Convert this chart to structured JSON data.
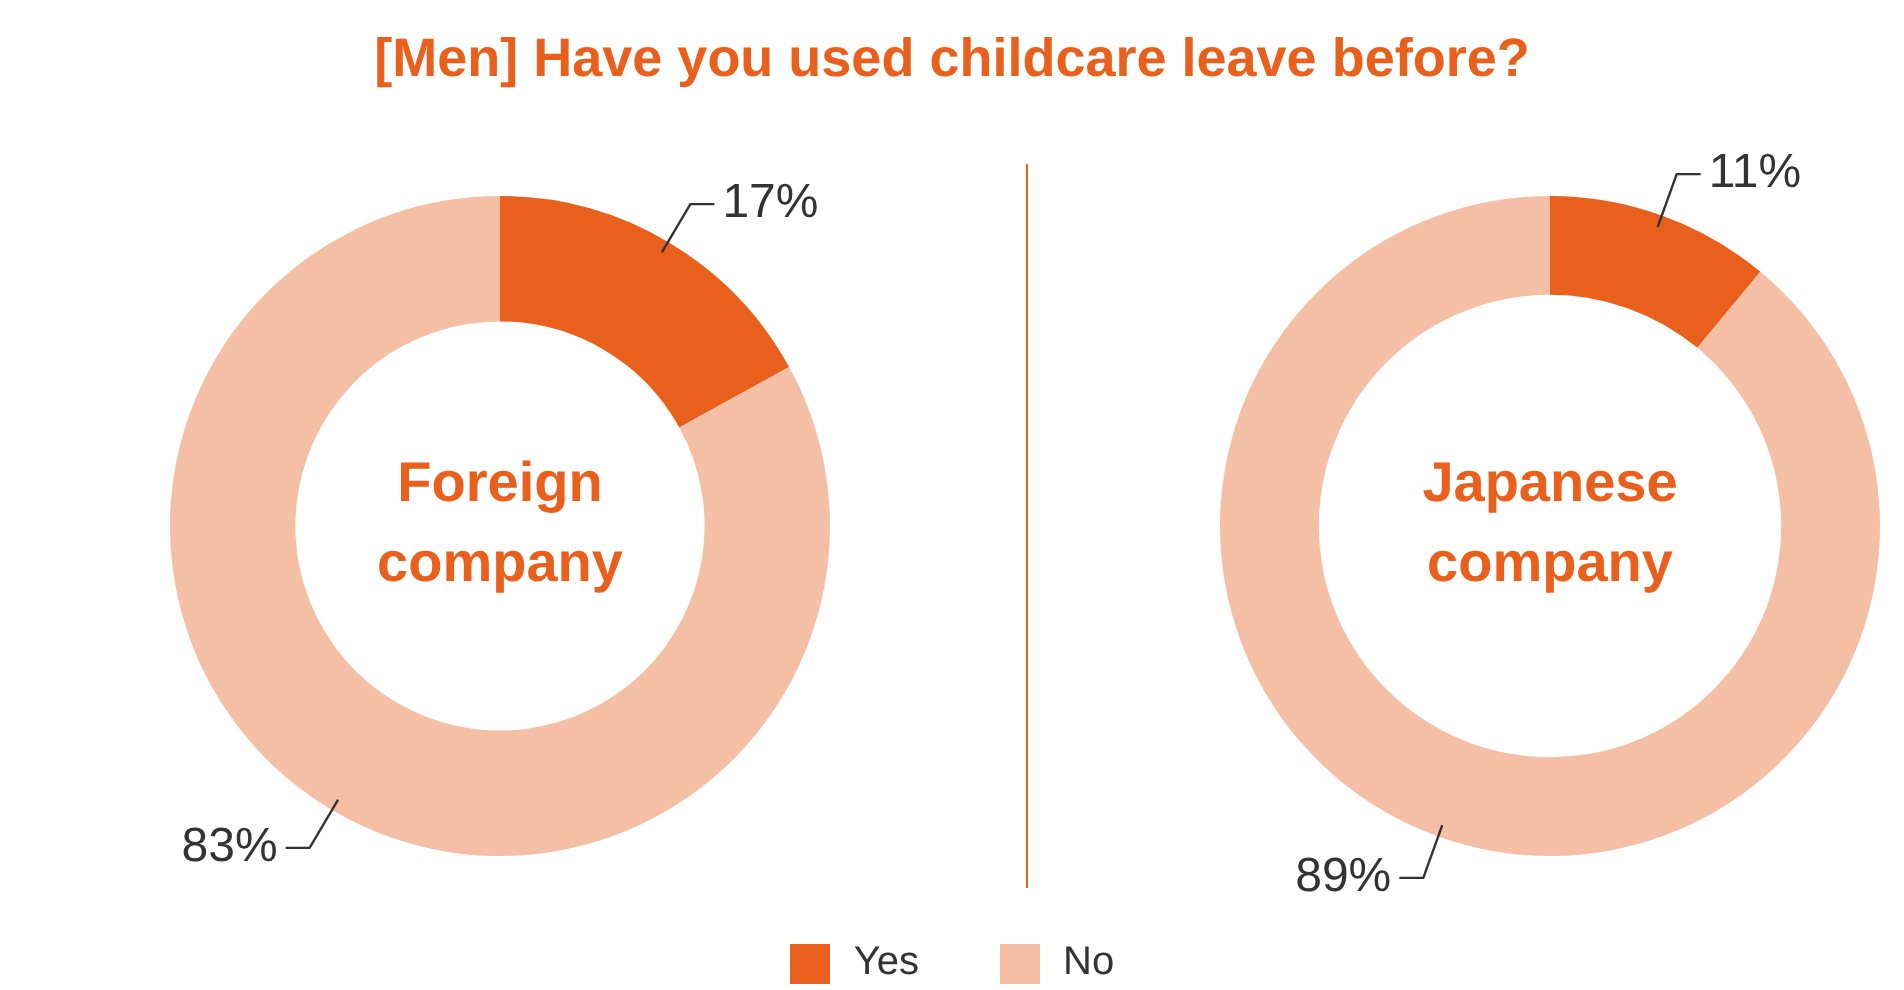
{
  "chart_data": [
    {
      "type": "donut",
      "title": "[Men] Have you used childcare leave before?",
      "categories": [
        "Yes",
        "No"
      ],
      "values": [
        17,
        83
      ],
      "value_labels": [
        "17%",
        "83%"
      ],
      "colors": [
        "#e8601c",
        "#f5bfa5"
      ],
      "annotations": [
        "Foreign company"
      ],
      "legend": "bottom"
    },
    {
      "type": "donut",
      "categories": [
        null,
        null
      ],
      "values": [
        11,
        89
      ],
      "value_labels": [
        "11%",
        "89%"
      ],
      "colors": [
        "#e8601c",
        "#f5bfa5"
      ],
      "annotations": [
        "Japanese company"
      ]
    }
  ]
}
